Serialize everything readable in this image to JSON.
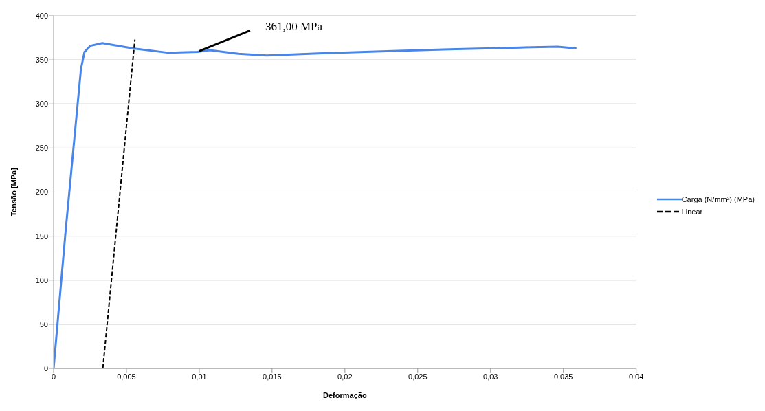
{
  "chart_data": {
    "type": "line",
    "xlabel": "Deformação",
    "ylabel": "Tensão [MPa]",
    "xlim": [
      0,
      0.04
    ],
    "ylim": [
      0,
      400
    ],
    "xticks": [
      {
        "value": 0,
        "label": "0"
      },
      {
        "value": 0.005,
        "label": "0,005"
      },
      {
        "value": 0.01,
        "label": "0,01"
      },
      {
        "value": 0.015,
        "label": "0,015"
      },
      {
        "value": 0.02,
        "label": "0,02"
      },
      {
        "value": 0.025,
        "label": "0,025"
      },
      {
        "value": 0.03,
        "label": "0,03"
      },
      {
        "value": 0.035,
        "label": "0,035"
      },
      {
        "value": 0.04,
        "label": "0,04"
      }
    ],
    "yticks": [
      0,
      50,
      100,
      150,
      200,
      250,
      300,
      350,
      400
    ],
    "grid": "y",
    "legend": "right",
    "series": [
      {
        "name": "Carga (N/mm²) (MPa)",
        "color": "#4a86e8",
        "line_style": "solid",
        "x": [
          0,
          0.00082,
          0.00188,
          0.00212,
          0.00253,
          0.00335,
          0.00547,
          0.00792,
          0.00987,
          0.01072,
          0.01268,
          0.01464,
          0.01934,
          0.02326,
          0.02717,
          0.03207,
          0.03461,
          0.0359
        ],
        "values": [
          0,
          155,
          340,
          359,
          366,
          369,
          363,
          358,
          359,
          361,
          357,
          355,
          358,
          360,
          362,
          364,
          365,
          363
        ]
      },
      {
        "name": "Linear",
        "color": "#000000",
        "line_style": "dashed",
        "x": [
          0.00338,
          0.00558
        ],
        "values": [
          0,
          373
        ]
      }
    ],
    "annotations": [
      {
        "text": "361,00 MPa",
        "x": 0.01,
        "y": 360
      }
    ]
  }
}
